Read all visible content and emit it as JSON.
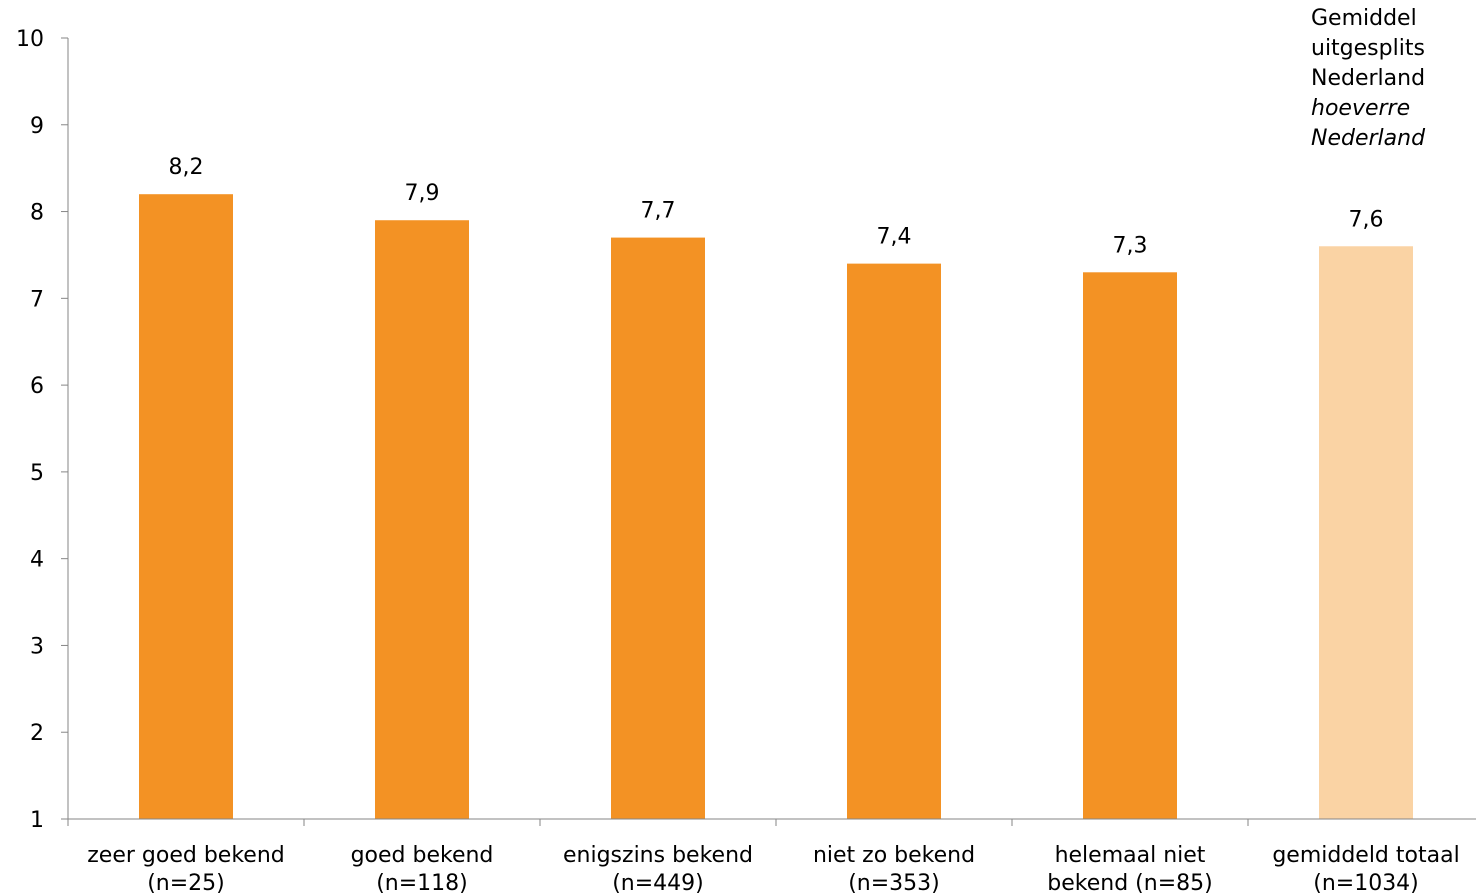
{
  "chart_data": {
    "type": "bar",
    "title": "",
    "xlabel": "",
    "ylabel": "",
    "ylim": [
      1,
      10
    ],
    "yticks": [
      "1",
      "2",
      "3",
      "4",
      "5",
      "6",
      "7",
      "8",
      "9",
      "10"
    ],
    "categories": [
      [
        "zeer goed bekend",
        "(n=25)"
      ],
      [
        "goed bekend",
        "(n=118)"
      ],
      [
        "enigszins bekend",
        "(n=449)"
      ],
      [
        "niet zo bekend",
        "(n=353)"
      ],
      [
        "helemaal niet",
        "bekend (n=85)"
      ],
      [
        "gemiddeld totaal",
        "(n=1034)"
      ]
    ],
    "values": [
      8.2,
      7.9,
      7.7,
      7.4,
      7.3,
      7.6
    ],
    "value_labels": [
      "8,2",
      "7,9",
      "7,7",
      "7,4",
      "7,3",
      "7,6"
    ],
    "colors": [
      "#f39224",
      "#f39224",
      "#f39224",
      "#f39224",
      "#f39224",
      "#fad3a4"
    ],
    "grid": false,
    "legend": "none"
  },
  "note": {
    "lines": [
      "Gemiddel",
      "uitgesplits",
      "Nederland",
      "hoeverre",
      "Nederland"
    ]
  }
}
